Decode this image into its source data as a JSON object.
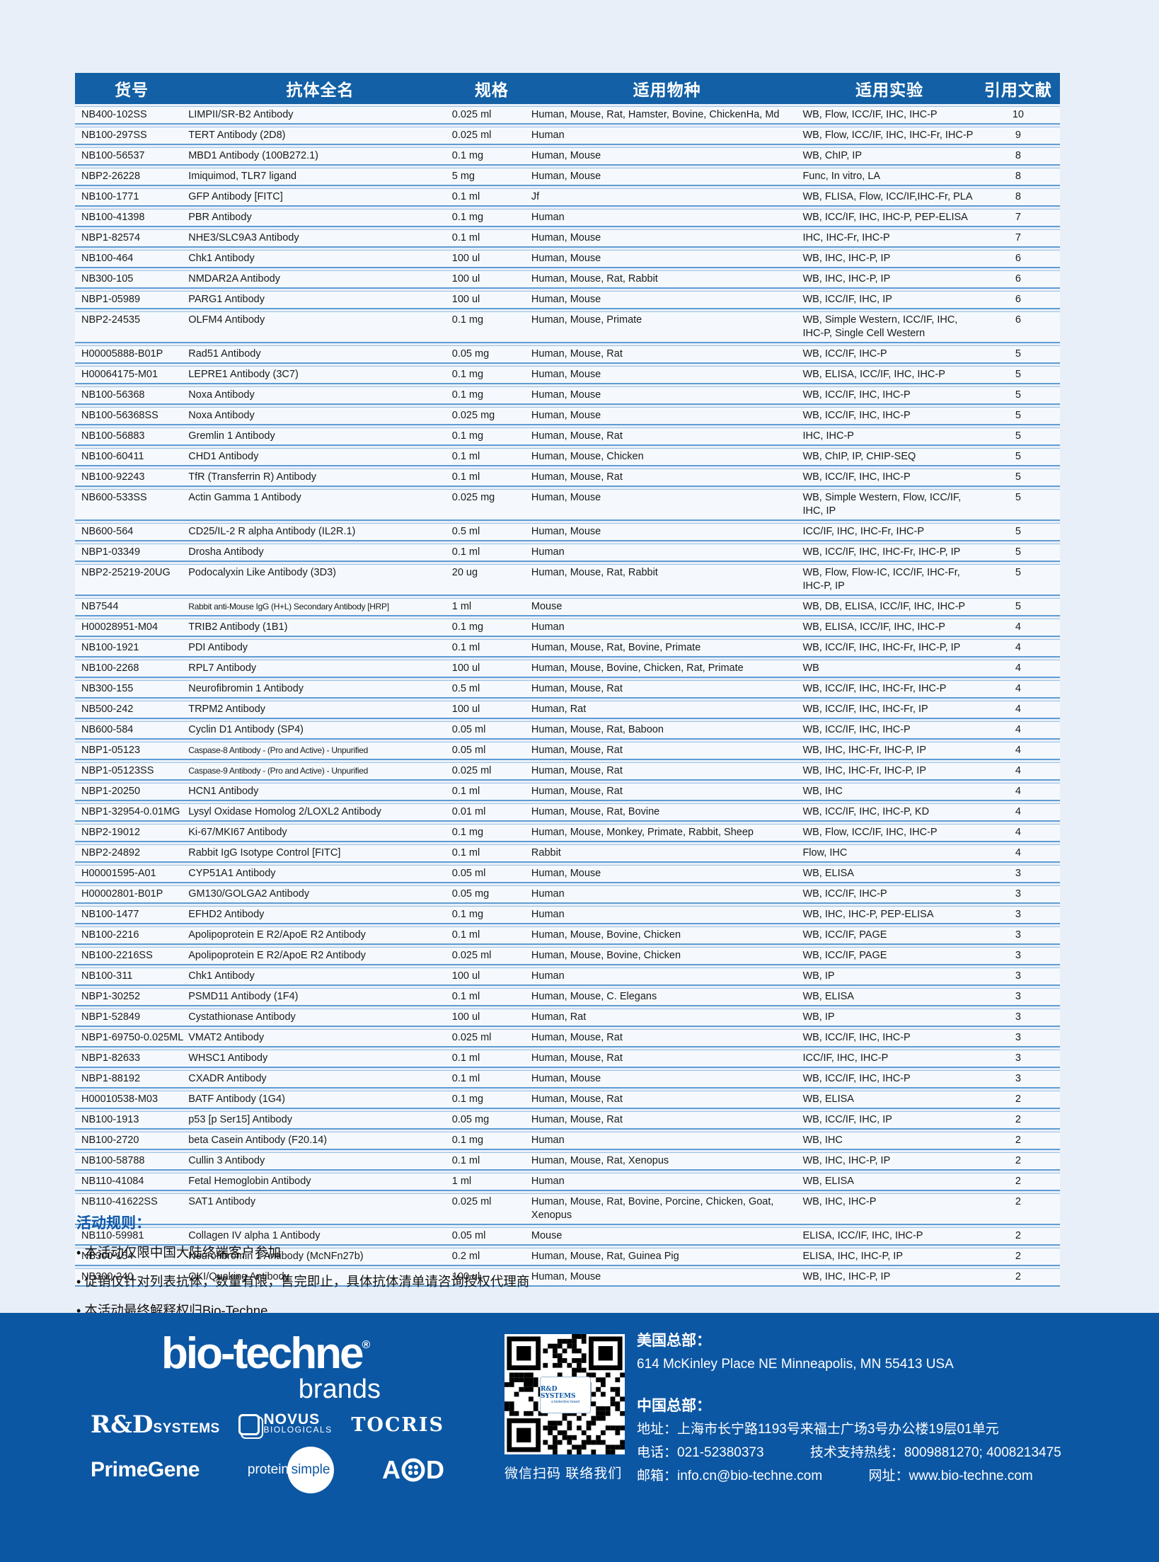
{
  "table": {
    "headers": [
      "货号",
      "抗体全名",
      "规格",
      "适用物种",
      "适用实验",
      "引用文献"
    ],
    "rows": [
      {
        "cat": "NB400-102SS",
        "name": "LIMPII/SR-B2 Antibody",
        "size": "0.025 ml",
        "species": "Human, Mouse, Rat, Hamster, Bovine, ChickenHa, Md",
        "apps": "WB, Flow, ICC/IF, IHC, IHC-P",
        "cit": "10"
      },
      {
        "cat": "NB100-297SS",
        "name": "TERT Antibody (2D8)",
        "size": "0.025 ml",
        "species": "Human",
        "apps": "WB, Flow, ICC/IF, IHC, IHC-Fr, IHC-P",
        "cit": "9"
      },
      {
        "cat": "NB100-56537",
        "name": "MBD1 Antibody (100B272.1)",
        "size": "0.1 mg",
        "species": "Human, Mouse",
        "apps": "WB, ChIP, IP",
        "cit": "8"
      },
      {
        "cat": "NBP2-26228",
        "name": "Imiquimod, TLR7 ligand",
        "size": "5 mg",
        "species": "Human, Mouse",
        "apps": "Func, In vitro, LA",
        "cit": "8"
      },
      {
        "cat": "NB100-1771",
        "name": "GFP Antibody [FITC]",
        "size": "0.1 ml",
        "species": "Jf",
        "apps": "WB, FLISA, Flow, ICC/IF,IHC-Fr, PLA",
        "cit": "8"
      },
      {
        "cat": "NB100-41398",
        "name": "PBR Antibody",
        "size": "0.1 mg",
        "species": "Human",
        "apps": "WB, ICC/IF, IHC, IHC-P, PEP-ELISA",
        "cit": "7"
      },
      {
        "cat": "NBP1-82574",
        "name": "NHE3/SLC9A3 Antibody",
        "size": "0.1 ml",
        "species": "Human, Mouse",
        "apps": "IHC, IHC-Fr, IHC-P",
        "cit": "7"
      },
      {
        "cat": "NB100-464",
        "name": "Chk1 Antibody",
        "size": "100 ul",
        "species": "Human, Mouse",
        "apps": "WB, IHC, IHC-P, IP",
        "cit": "6"
      },
      {
        "cat": "NB300-105",
        "name": "NMDAR2A Antibody",
        "size": "100 ul",
        "species": "Human, Mouse, Rat, Rabbit",
        "apps": "WB, IHC, IHC-P, IP",
        "cit": "6"
      },
      {
        "cat": "NBP1-05989",
        "name": "PARG1 Antibody",
        "size": "100 ul",
        "species": "Human, Mouse",
        "apps": "WB, ICC/IF, IHC, IP",
        "cit": "6"
      },
      {
        "cat": "NBP2-24535",
        "name": "OLFM4 Antibody",
        "size": "0.1 mg",
        "species": "Human, Mouse, Primate",
        "apps": "WB, Simple Western, ICC/IF, IHC, IHC-P, Single Cell Western",
        "cit": "6"
      },
      {
        "cat": "H00005888-B01P",
        "name": "Rad51 Antibody",
        "size": "0.05 mg",
        "species": "Human, Mouse, Rat",
        "apps": "WB, ICC/IF, IHC-P",
        "cit": "5"
      },
      {
        "cat": "H00064175-M01",
        "name": "LEPRE1 Antibody (3C7)",
        "size": "0.1 mg",
        "species": "Human, Mouse",
        "apps": "WB, ELISA, ICC/IF, IHC, IHC-P",
        "cit": "5"
      },
      {
        "cat": "NB100-56368",
        "name": "Noxa Antibody",
        "size": "0.1 mg",
        "species": "Human, Mouse",
        "apps": "WB, ICC/IF, IHC, IHC-P",
        "cit": "5"
      },
      {
        "cat": "NB100-56368SS",
        "name": "Noxa Antibody",
        "size": "0.025 mg",
        "species": "Human, Mouse",
        "apps": "WB, ICC/IF, IHC, IHC-P",
        "cit": "5"
      },
      {
        "cat": "NB100-56883",
        "name": "Gremlin 1 Antibody",
        "size": "0.1 mg",
        "species": "Human, Mouse, Rat",
        "apps": "IHC, IHC-P",
        "cit": "5"
      },
      {
        "cat": "NB100-60411",
        "name": "CHD1 Antibody",
        "size": "0.1 ml",
        "species": "Human, Mouse, Chicken",
        "apps": "WB, ChIP, IP, CHIP-SEQ",
        "cit": "5"
      },
      {
        "cat": "NB100-92243",
        "name": "TfR (Transferrin R) Antibody",
        "size": "0.1 ml",
        "species": "Human, Mouse, Rat",
        "apps": "WB, ICC/IF, IHC, IHC-P",
        "cit": "5"
      },
      {
        "cat": "NB600-533SS",
        "name": "Actin Gamma 1 Antibody",
        "size": "0.025 mg",
        "species": "Human, Mouse",
        "apps": "WB, Simple Western, Flow, ICC/IF, IHC, IP",
        "cit": "5"
      },
      {
        "cat": "NB600-564",
        "name": "CD25/IL-2 R alpha Antibody (IL2R.1)",
        "size": "0.5 ml",
        "species": "Human, Mouse",
        "apps": "ICC/IF, IHC, IHC-Fr, IHC-P",
        "cit": "5"
      },
      {
        "cat": "NBP1-03349",
        "name": "Drosha Antibody",
        "size": "0.1 ml",
        "species": "Human",
        "apps": "WB, ICC/IF, IHC, IHC-Fr, IHC-P, IP",
        "cit": "5"
      },
      {
        "cat": "NBP2-25219-20UG",
        "name": "Podocalyxin Like Antibody (3D3)",
        "size": "20 ug",
        "species": "Human, Mouse, Rat, Rabbit",
        "apps": "WB, Flow, Flow-IC, ICC/IF, IHC-Fr, IHC-P, IP",
        "cit": "5"
      },
      {
        "cat": "NB7544",
        "name": "Rabbit anti-Mouse IgG (H+L) Secondary Antibody [HRP]",
        "size": "1 ml",
        "species": "Mouse",
        "apps": "WB, DB, ELISA, ICC/IF, IHC, IHC-P",
        "cit": "5"
      },
      {
        "cat": "H00028951-M04",
        "name": "TRIB2 Antibody (1B1)",
        "size": "0.1 mg",
        "species": "Human",
        "apps": "WB, ELISA, ICC/IF, IHC, IHC-P",
        "cit": "4"
      },
      {
        "cat": "NB100-1921",
        "name": "PDI Antibody",
        "size": "0.1 ml",
        "species": "Human, Mouse, Rat, Bovine, Primate",
        "apps": "WB, ICC/IF, IHC, IHC-Fr, IHC-P, IP",
        "cit": "4"
      },
      {
        "cat": "NB100-2268",
        "name": "RPL7 Antibody",
        "size": "100 ul",
        "species": "Human, Mouse, Bovine, Chicken, Rat, Primate",
        "apps": "WB",
        "cit": "4"
      },
      {
        "cat": "NB300-155",
        "name": "Neurofibromin 1 Antibody",
        "size": "0.5 ml",
        "species": "Human, Mouse, Rat",
        "apps": "WB, ICC/IF, IHC, IHC-Fr, IHC-P",
        "cit": "4"
      },
      {
        "cat": "NB500-242",
        "name": "TRPM2 Antibody",
        "size": "100 ul",
        "species": "Human, Rat",
        "apps": "WB, ICC/IF, IHC, IHC-Fr, IP",
        "cit": "4"
      },
      {
        "cat": "NB600-584",
        "name": "Cyclin D1 Antibody (SP4)",
        "size": "0.05 ml",
        "species": "Human, Mouse, Rat, Baboon",
        "apps": "WB, ICC/IF, IHC, IHC-P",
        "cit": "4"
      },
      {
        "cat": "NBP1-05123",
        "name": "Caspase-8 Antibody - (Pro and Active) - Unpurified",
        "size": "0.05 ml",
        "species": "Human, Mouse, Rat",
        "apps": "WB, IHC, IHC-Fr, IHC-P, IP",
        "cit": "4"
      },
      {
        "cat": "NBP1-05123SS",
        "name": "Caspase-9 Antibody - (Pro and Active) - Unpurified",
        "size": "0.025 ml",
        "species": "Human, Mouse, Rat",
        "apps": "WB, IHC, IHC-Fr, IHC-P, IP",
        "cit": "4"
      },
      {
        "cat": "NBP1-20250",
        "name": "HCN1 Antibody",
        "size": "0.1 ml",
        "species": "Human, Mouse, Rat",
        "apps": "WB, IHC",
        "cit": "4"
      },
      {
        "cat": "NBP1-32954-0.01MG",
        "name": "Lysyl Oxidase Homolog 2/LOXL2 Antibody",
        "size": "0.01 ml",
        "species": "Human, Mouse, Rat, Bovine",
        "apps": "WB, ICC/IF, IHC, IHC-P, KD",
        "cit": "4"
      },
      {
        "cat": "NBP2-19012",
        "name": "Ki-67/MKI67 Antibody",
        "size": "0.1 mg",
        "species": "Human, Mouse, Monkey, Primate, Rabbit, Sheep",
        "apps": "WB, Flow, ICC/IF, IHC, IHC-P",
        "cit": "4"
      },
      {
        "cat": "NBP2-24892",
        "name": "Rabbit IgG Isotype Control [FITC]",
        "size": "0.1 ml",
        "species": "Rabbit",
        "apps": "Flow, IHC",
        "cit": "4"
      },
      {
        "cat": "H00001595-A01",
        "name": "CYP51A1 Antibody",
        "size": "0.05 ml",
        "species": "Human, Mouse",
        "apps": "WB, ELISA",
        "cit": "3"
      },
      {
        "cat": "H00002801-B01P",
        "name": "GM130/GOLGA2 Antibody",
        "size": "0.05 mg",
        "species": "Human",
        "apps": "WB, ICC/IF, IHC-P",
        "cit": "3"
      },
      {
        "cat": "NB100-1477",
        "name": "EFHD2 Antibody",
        "size": "0.1 mg",
        "species": "Human",
        "apps": "WB, IHC, IHC-P, PEP-ELISA",
        "cit": "3"
      },
      {
        "cat": "NB100-2216",
        "name": "Apolipoprotein E R2/ApoE R2 Antibody",
        "size": "0.1 ml",
        "species": "Human, Mouse, Bovine, Chicken",
        "apps": "WB, ICC/IF, PAGE",
        "cit": "3"
      },
      {
        "cat": "NB100-2216SS",
        "name": "Apolipoprotein E R2/ApoE R2 Antibody",
        "size": "0.025 ml",
        "species": "Human, Mouse, Bovine, Chicken",
        "apps": "WB, ICC/IF, PAGE",
        "cit": "3"
      },
      {
        "cat": "NB100-311",
        "name": "Chk1 Antibody",
        "size": "100 ul",
        "species": "Human",
        "apps": "WB, IP",
        "cit": "3"
      },
      {
        "cat": "NBP1-30252",
        "name": "PSMD11 Antibody (1F4)",
        "size": "0.1 ml",
        "species": "Human, Mouse, C. Elegans",
        "apps": "WB, ELISA",
        "cit": "3"
      },
      {
        "cat": "NBP1-52849",
        "name": "Cystathionase Antibody",
        "size": "100 ul",
        "species": "Human, Rat",
        "apps": "WB, IP",
        "cit": "3"
      },
      {
        "cat": "NBP1-69750-0.025ML",
        "name": "VMAT2 Antibody",
        "size": "0.025 ml",
        "species": "Human, Mouse, Rat",
        "apps": "WB, ICC/IF, IHC, IHC-P",
        "cit": "3"
      },
      {
        "cat": "NBP1-82633",
        "name": "WHSC1 Antibody",
        "size": "0.1 ml",
        "species": "Human, Mouse, Rat",
        "apps": "ICC/IF, IHC, IHC-P",
        "cit": "3"
      },
      {
        "cat": "NBP1-88192",
        "name": "CXADR Antibody",
        "size": "0.1 ml",
        "species": "Human, Mouse",
        "apps": "WB, ICC/IF, IHC, IHC-P",
        "cit": "3"
      },
      {
        "cat": "H00010538-M03",
        "name": "BATF Antibody (1G4)",
        "size": "0.1 mg",
        "species": "Human, Mouse, Rat",
        "apps": "WB, ELISA",
        "cit": "2"
      },
      {
        "cat": "NB100-1913",
        "name": "p53 [p Ser15] Antibody",
        "size": "0.05 mg",
        "species": "Human, Mouse, Rat",
        "apps": "WB, ICC/IF, IHC, IP",
        "cit": "2"
      },
      {
        "cat": "NB100-2720",
        "name": "beta Casein Antibody (F20.14)",
        "size": "0.1 mg",
        "species": "Human",
        "apps": "WB, IHC",
        "cit": "2"
      },
      {
        "cat": "NB100-58788",
        "name": "Cullin 3 Antibody",
        "size": "0.1 ml",
        "species": "Human, Mouse, Rat, Xenopus",
        "apps": "WB, IHC, IHC-P, IP",
        "cit": "2"
      },
      {
        "cat": "NB110-41084",
        "name": "Fetal Hemoglobin Antibody",
        "size": "1 ml",
        "species": "Human",
        "apps": "WB, ELISA",
        "cit": "2"
      },
      {
        "cat": "NB110-41622SS",
        "name": "SAT1 Antibody",
        "size": "0.025 ml",
        "species": "Human, Mouse, Rat, Bovine, Porcine, Chicken, Goat, Xenopus",
        "apps": "WB, IHC, IHC-P",
        "cit": "2"
      },
      {
        "cat": "NB110-59981",
        "name": "Collagen IV alpha 1 Antibody",
        "size": "0.05 ml",
        "species": "Mouse",
        "apps": "ELISA, ICC/IF, IHC, IHC-P",
        "cit": "2"
      },
      {
        "cat": "NB300-154",
        "name": "Neurofibromin 1 Antibody (McNFn27b)",
        "size": "0.2 ml",
        "species": "Human, Mouse, Rat, Guinea Pig",
        "apps": "ELISA, IHC, IHC-P, IP",
        "cit": "2"
      },
      {
        "cat": "NB300-240",
        "name": "QKI/Quaking Antibody",
        "size": "100 ul",
        "species": "Human, Mouse",
        "apps": "WB, IHC, IHC-P, IP",
        "cit": "2"
      }
    ]
  },
  "rules": {
    "title": "活动规则：",
    "items": [
      "本活动仅限中国大陆终端客户参加",
      "促销仅针对列表抗体，数量有限，售完即止，具体抗体清单请咨询授权代理商",
      "本活动最终解释权归Bio-Techne"
    ]
  },
  "footer": {
    "logo": "bio-techne",
    "logo_reg": "®",
    "logo_sub": "brands",
    "brand_rd_serif": "R&D",
    "brand_rd_small": "SYSTEMS",
    "brand_novus_top": "NOVUS",
    "brand_novus_bottom": "BIOLOGICALS",
    "brand_tocris": "TOCRIS",
    "brand_primegene": "PrimeGene",
    "brand_ps_protein": "protein",
    "brand_ps_simple": "simple",
    "brand_acd_a": "A",
    "brand_acd_d": "D",
    "qr_label_line1": "R&D SYSTEMS",
    "qr_label_line2": "a biotechne brand",
    "qr_caption": "微信扫码 联络我们",
    "us_title": "美国总部：",
    "us_address": "614 McKinley Place NE Minneapolis, MN 55413 USA",
    "cn_title": "中国总部：",
    "cn_address": "地址：上海市长宁路1193号来福士广场3号办公楼19层01单元",
    "cn_phone": "电话：021-52380373",
    "cn_hotline": "技术支持热线：8009881270; 4008213475",
    "cn_email": "邮箱：info.cn@bio-techne.com",
    "cn_web": "网址：www.bio-techne.com"
  },
  "colors": {
    "header_blue": "#1360a6",
    "footer_blue": "#0c57a4",
    "page_bg": "#e9eff8",
    "row_bg": "#f5f9fd",
    "row_separator": "#5f9cd4",
    "rules_title_blue": "#0e57a8"
  }
}
